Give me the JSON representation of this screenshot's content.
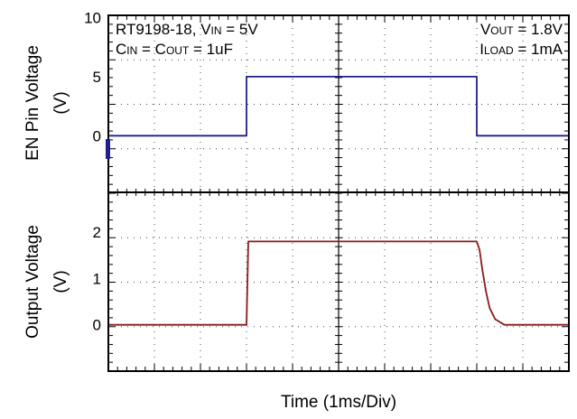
{
  "chart_data": {
    "type": "line",
    "xlabel": "Time (1ms/Div)",
    "x_unit": "ms",
    "x_range": [
      -2.5,
      2.5
    ],
    "annotations": {
      "part": "RT9198-18, ",
      "vin_sym": "V",
      "vin_sub": "IN",
      "vin_val": " = 5V",
      "cin_sym": "C",
      "cin_sub": "IN",
      "cout_mid": " = C",
      "cout_sub": "OUT",
      "cap_val": " = 1uF",
      "vout_sym": "V",
      "vout_sub": "OUT",
      "vout_val": " = 1.8V",
      "iload_sym": "I",
      "iload_sub": "LOAD",
      "iload_val": " = 1mA"
    },
    "panels": [
      {
        "name": "en",
        "ylabel_line1": "EN Pin Voltage",
        "ylabel_line2": "(V)",
        "ylim": [
          -4.8,
          10.2
        ],
        "yticks": [
          0,
          5,
          10
        ],
        "color": "#1f1f8f",
        "series": {
          "x": [
            -2.5,
            -1.0,
            -1.0,
            1.5,
            1.5,
            2.5
          ],
          "y": [
            0,
            0,
            5,
            5,
            0,
            0
          ]
        }
      },
      {
        "name": "out",
        "ylabel_line1": "Output Voltage",
        "ylabel_line2": "(V)",
        "ylim": [
          -1.0,
          2.86
        ],
        "yticks": [
          0,
          1,
          2
        ],
        "color": "#8b1a1a",
        "series": {
          "x": [
            -2.5,
            -1.0,
            -0.98,
            1.5,
            1.53,
            1.56,
            1.6,
            1.64,
            1.7,
            1.8,
            2.5
          ],
          "y": [
            0,
            0,
            1.8,
            1.8,
            1.62,
            1.2,
            0.72,
            0.36,
            0.12,
            0,
            0
          ]
        }
      }
    ]
  }
}
